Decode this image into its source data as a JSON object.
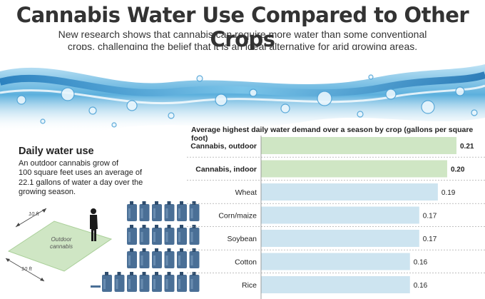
{
  "header": {
    "title": "Cannabis Water Use Compared to Other Crops",
    "subtitle_line1": "New research shows that cannabis can require more water than some conventional",
    "subtitle_line2": "crops, challenging the belief that it is an ideal alternative for arid growing areas."
  },
  "daily_use": {
    "title": "Daily water use",
    "line1": "An outdoor cannabis grow of",
    "line2": "100 square feet uses an average of",
    "line3": "22.1 gallons of water a day over the",
    "line4": "growing season."
  },
  "illustration": {
    "plot_label_line1": "Outdoor",
    "plot_label_line2": "cannabis",
    "dim_top": "10 ft",
    "dim_bottom": "10 ft",
    "jug_rows": [
      6,
      6,
      6,
      8
    ],
    "colors": {
      "jug": "#4a6f96",
      "jug_dark": "#2e4d6e",
      "plot": "#cfe6c4"
    }
  },
  "chart_data": {
    "type": "bar",
    "orientation": "horizontal",
    "title": "Average highest daily water demand over a season by crop (gallons per square foot)",
    "categories": [
      "Cannabis, outdoor",
      "Cannabis, indoor",
      "Wheat",
      "Corn/maize",
      "Soybean",
      "Cotton",
      "Rice"
    ],
    "values": [
      0.21,
      0.2,
      0.19,
      0.17,
      0.17,
      0.16,
      0.16
    ],
    "value_labels": [
      "0.21",
      "0.20",
      "0.19",
      "0.17",
      "0.17",
      "0.16",
      "0.16"
    ],
    "bold": [
      true,
      true,
      false,
      false,
      false,
      false,
      false
    ],
    "xlim": [
      0,
      0.21
    ],
    "colors": {
      "highlight": "#cfe6c4",
      "normal": "#cde4f0",
      "separator": "#999999"
    }
  }
}
